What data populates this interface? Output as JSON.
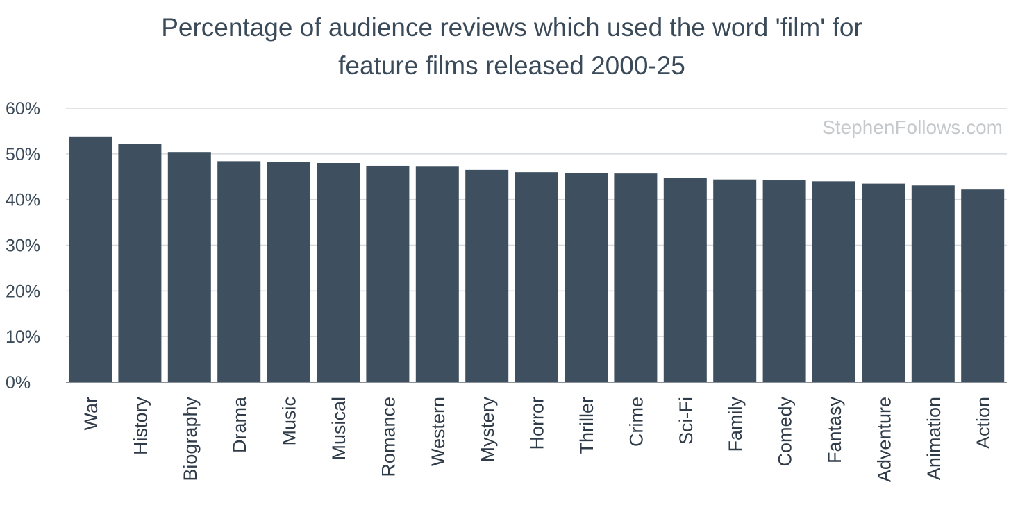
{
  "chart_data": {
    "type": "bar",
    "title": "Percentage of audience reviews which used the word 'film'  for feature films released 2000-25",
    "title_lines": [
      "Percentage of audience reviews which used the word 'film'  for",
      "feature films released 2000-25"
    ],
    "categories": [
      "War",
      "History",
      "Biography",
      "Drama",
      "Music",
      "Musical",
      "Romance",
      "Western",
      "Mystery",
      "Horror",
      "Thriller",
      "Crime",
      "Sci-Fi",
      "Family",
      "Comedy",
      "Fantasy",
      "Adventure",
      "Animation",
      "Action"
    ],
    "values": [
      53.8,
      52.1,
      50.4,
      48.4,
      48.2,
      48.0,
      47.4,
      47.2,
      46.5,
      46.0,
      45.8,
      45.7,
      44.8,
      44.4,
      44.2,
      44.0,
      43.5,
      43.1,
      42.2
    ],
    "value_unit": "percent",
    "ylim": [
      0,
      60
    ],
    "y_ticks": [
      0,
      10,
      20,
      30,
      40,
      50,
      60
    ],
    "y_tick_labels": [
      "0%",
      "10%",
      "20%",
      "30%",
      "40%",
      "50%",
      "60%"
    ],
    "xlabel": "",
    "ylabel": "",
    "grid": true,
    "watermark": "StephenFollows.com",
    "colors": {
      "bar": "#3e4f5f",
      "grid": "#d6d9dc",
      "axis": "#8a9097",
      "title": "#3a4a59",
      "watermark": "#c6c9cc"
    }
  }
}
